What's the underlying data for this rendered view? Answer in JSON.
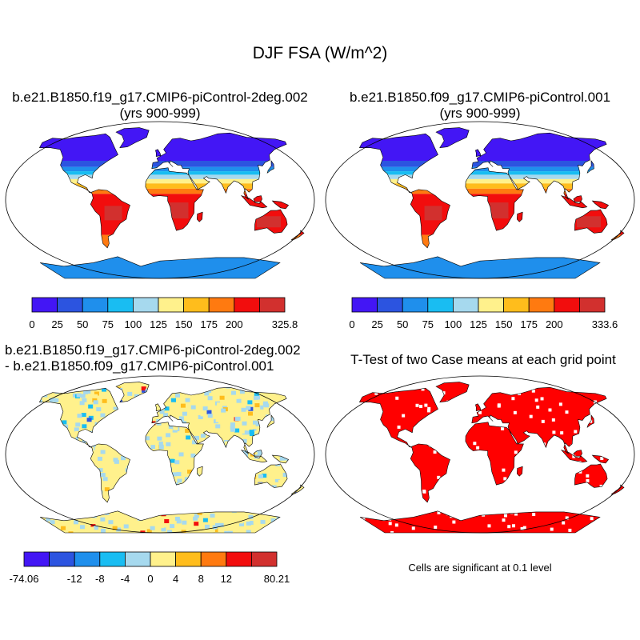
{
  "title": "DJF FSA (W/m^2)",
  "panels": [
    {
      "id": "case1",
      "title_lines": [
        "b.e21.B1850.f19_g17.CMIP6-piControl-2deg.002",
        "(yrs 900-999)"
      ]
    },
    {
      "id": "case2",
      "title_lines": [
        "b.e21.B1850.f09_g17.CMIP6-piControl.001",
        "(yrs 900-999)"
      ]
    },
    {
      "id": "difference",
      "title_lines": [
        "b.e21.B1850.f19_g17.CMIP6-piControl-2deg.002",
        "- b.e21.B1850.f09_g17.CMIP6-piControl.001"
      ]
    },
    {
      "id": "ttest",
      "title_lines": [
        "T-Test of two Case means at each grid point"
      ]
    }
  ],
  "colorbars": [
    {
      "panel": "case1",
      "colors": [
        "#4316f5",
        "#2c54e0",
        "#1f8fec",
        "#19bdf2",
        "#a6d9ee",
        "#fff18c",
        "#ffbd1c",
        "#ff7a10",
        "#f20d0d",
        "#d2302e"
      ],
      "labels": [
        "0",
        "25",
        "50",
        "75",
        "100",
        "125",
        "150",
        "175",
        "200",
        "325.8"
      ]
    },
    {
      "panel": "case2",
      "colors": [
        "#4316f5",
        "#2c54e0",
        "#1f8fec",
        "#19bdf2",
        "#a6d9ee",
        "#fff18c",
        "#ffbd1c",
        "#ff7a10",
        "#f20d0d",
        "#d2302e"
      ],
      "labels": [
        "0",
        "25",
        "50",
        "75",
        "100",
        "125",
        "150",
        "175",
        "200",
        "333.6"
      ]
    },
    {
      "panel": "difference",
      "colors": [
        "#4316f5",
        "#2c54e0",
        "#1f8fec",
        "#19bdf2",
        "#a6d9ee",
        "#fff18c",
        "#ffbd1c",
        "#ff7a10",
        "#f20d0d",
        "#d2302e"
      ],
      "labels": [
        "-74.06",
        "-12",
        "-8",
        "-4",
        "0",
        "4",
        "8",
        "12",
        "80.21"
      ]
    }
  ],
  "significance_note": "Cells are significant at 0.1 level",
  "colors": {
    "land_outline": "#000000",
    "significant": "#ff0000"
  }
}
